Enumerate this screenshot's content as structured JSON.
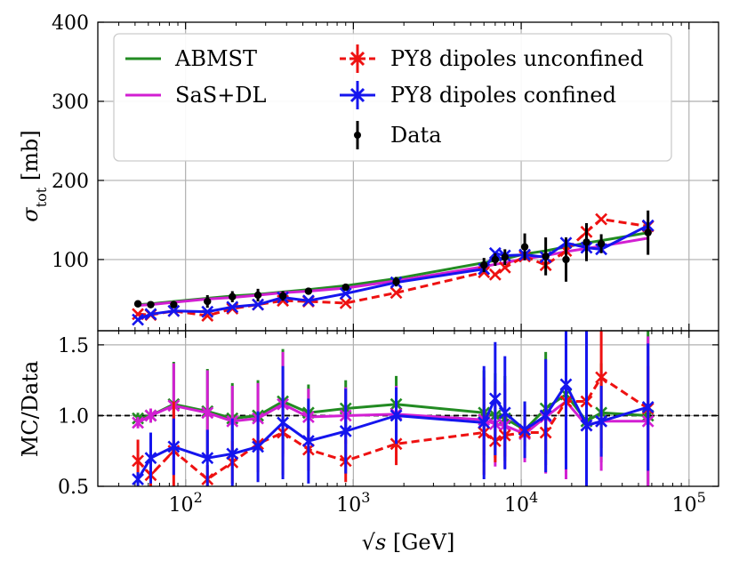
{
  "chart_data": [
    {
      "type": "line",
      "panel": "top",
      "xscale": "log",
      "xlim": [
        30,
        150000
      ],
      "ylim": [
        10,
        400
      ],
      "ylabel_main": "σ",
      "ylabel_sub": "tot",
      "ylabel_unit": " [mb]",
      "yticks": [
        100,
        200,
        300,
        400
      ],
      "ytick_labels": [
        "100",
        "200",
        "300",
        "400"
      ],
      "grid": true,
      "legend_position": "top-left",
      "x": [
        52,
        62,
        85,
        135,
        190,
        270,
        380,
        540,
        900,
        1800,
        6000,
        7000,
        8000,
        10500,
        14000,
        18500,
        24500,
        30000,
        57000
      ],
      "series": [
        {
          "name": "ABMST",
          "color": "#228b22",
          "style": "solid",
          "marker": "none",
          "values": [
            43,
            44,
            47,
            51,
            54,
            56,
            59,
            62,
            67,
            76,
            96,
            99,
            101,
            107,
            111,
            116,
            121,
            124,
            134
          ]
        },
        {
          "name": "SaS+DL",
          "color": "#d21fd2",
          "style": "solid",
          "marker": "none",
          "values": [
            42,
            43,
            46,
            50,
            52,
            55,
            58,
            60,
            64,
            73,
            91,
            94,
            96,
            101,
            105,
            110,
            114,
            117,
            127
          ]
        },
        {
          "name": "PY8 dipoles unconfined",
          "color": "#ee1111",
          "style": "dashed",
          "marker": "x",
          "values": [
            31,
            30,
            35,
            29,
            38,
            43,
            48,
            47,
            45,
            58,
            84,
            81,
            90,
            104,
            93,
            111,
            135,
            151,
            142
          ]
        },
        {
          "name": "PY8 dipoles confined",
          "color": "#1515ee",
          "style": "solid",
          "marker": "x",
          "values": [
            24,
            31,
            35,
            34,
            40,
            43,
            52,
            48,
            57,
            71,
            88,
            108,
            105,
            106,
            103,
            121,
            115,
            113,
            143
          ]
        }
      ],
      "data_points": {
        "name": "Data",
        "color": "#000000",
        "values": [
          44,
          43,
          43,
          47,
          53,
          55,
          54,
          60,
          65,
          72,
          93,
          100,
          103,
          116,
          104,
          100,
          122,
          120,
          134
        ],
        "errors": [
          2,
          2,
          4,
          8,
          7,
          8,
          6,
          4,
          4,
          6,
          9,
          8,
          10,
          17,
          24,
          28,
          24,
          12,
          28
        ]
      },
      "legend": [
        "ABMST",
        "SaS+DL",
        "PY8 dipoles unconfined",
        "PY8 dipoles confined",
        "Data"
      ]
    },
    {
      "type": "line",
      "panel": "bottom",
      "xscale": "log",
      "xlim": [
        30,
        150000
      ],
      "ylim": [
        0.5,
        1.6
      ],
      "ylabel": "MC/Data",
      "xlabel_main": "√s",
      "xlabel_unit": " [GeV]",
      "xtick_labels": [
        {
          "value": 100,
          "base": "10",
          "exp": "2"
        },
        {
          "value": 1000,
          "base": "10",
          "exp": "3"
        },
        {
          "value": 10000,
          "base": "10",
          "exp": "4"
        },
        {
          "value": 100000,
          "base": "10",
          "exp": "5"
        }
      ],
      "yticks": [
        0.5,
        1.0,
        1.5
      ],
      "ytick_labels": [
        "0.5",
        "1.0",
        "1.5"
      ],
      "reference_line": 1.0,
      "grid": true,
      "x": [
        52,
        62,
        85,
        135,
        190,
        270,
        380,
        540,
        900,
        1800,
        6000,
        7000,
        8000,
        10500,
        14000,
        18500,
        24500,
        30000,
        57000
      ],
      "series": [
        {
          "name": "ABMST",
          "color": "#228b22",
          "style": "solid",
          "marker": "x",
          "values": [
            0.98,
            1.0,
            1.08,
            1.03,
            0.98,
            1.0,
            1.1,
            1.02,
            1.05,
            1.08,
            1.02,
            1.0,
            0.98,
            0.9,
            1.05,
            1.15,
            0.96,
            1.02,
            1.0
          ],
          "errors": [
            0.04,
            0.05,
            0.3,
            0.3,
            0.25,
            0.25,
            0.37,
            0.2,
            0.2,
            0.2,
            0.3,
            0.3,
            0.3,
            0.2,
            0.4,
            0.55,
            0.6,
            0.35,
            0.6
          ]
        },
        {
          "name": "SaS+DL",
          "color": "#d21fd2",
          "style": "solid",
          "marker": "x",
          "values": [
            0.95,
            1.0,
            1.07,
            1.02,
            0.96,
            0.98,
            1.08,
            0.99,
            1.0,
            1.01,
            0.97,
            0.94,
            0.93,
            0.87,
            0.99,
            1.1,
            0.93,
            0.96,
            0.96
          ],
          "errors": [
            0.04,
            0.05,
            0.3,
            0.3,
            0.25,
            0.25,
            0.37,
            0.2,
            0.2,
            0.2,
            0.3,
            0.3,
            0.3,
            0.2,
            0.4,
            0.55,
            0.6,
            0.35,
            0.6
          ]
        },
        {
          "name": "PY8 dipoles unconfined",
          "color": "#ee1111",
          "style": "dashed",
          "marker": "x",
          "values": [
            0.68,
            0.58,
            0.75,
            0.55,
            0.67,
            0.8,
            0.88,
            0.76,
            0.68,
            0.8,
            0.88,
            0.82,
            0.86,
            0.88,
            0.88,
            1.1,
            1.1,
            1.27,
            1.05
          ],
          "errors": [
            0.15,
            0.1,
            0.35,
            0.1,
            0.15,
            0.2,
            0.3,
            0.15,
            0.15,
            0.15,
            0.3,
            0.15,
            0.15,
            0.1,
            0.15,
            0.4,
            0.5,
            0.5,
            0.3
          ]
        },
        {
          "name": "PY8 dipoles confined",
          "color": "#1515ee",
          "style": "solid",
          "marker": "x",
          "values": [
            0.55,
            0.7,
            0.78,
            0.7,
            0.73,
            0.78,
            0.95,
            0.82,
            0.89,
            1.0,
            0.95,
            1.12,
            1.02,
            0.9,
            1.0,
            1.22,
            0.93,
            0.96,
            1.06
          ],
          "errors": [
            0.05,
            0.18,
            0.2,
            0.2,
            0.25,
            0.25,
            0.4,
            0.3,
            0.3,
            0.2,
            0.4,
            0.4,
            0.4,
            0.2,
            0.4,
            0.6,
            0.7,
            0.25,
            0.45
          ]
        }
      ]
    }
  ]
}
